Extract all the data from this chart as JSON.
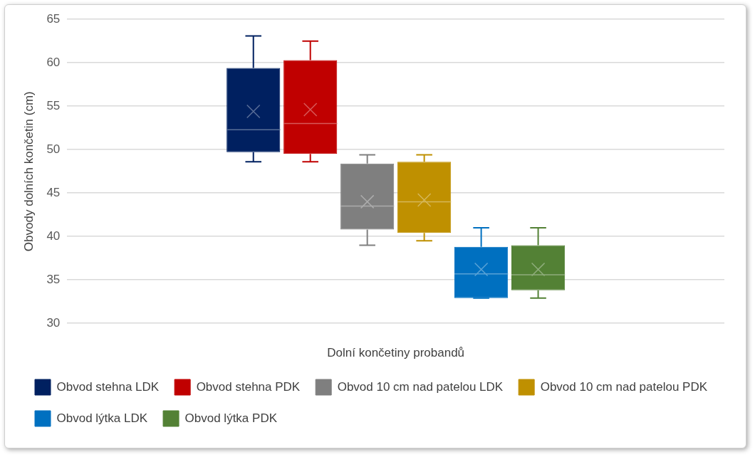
{
  "chart_data": {
    "type": "box",
    "xlabel": "Dolní končetiny probandů",
    "ylabel": "Obvody dolních končetin (cm)",
    "categories": [
      null
    ],
    "ylim": [
      30,
      65
    ],
    "yticks": [
      30,
      35,
      40,
      45,
      50,
      55,
      60,
      65
    ],
    "grid": "y",
    "legend": "bottom",
    "series": [
      {
        "name": "Obvod stehna LDK",
        "color": "#002060",
        "boxes": [
          {
            "low": 48.6,
            "q1": 49.7,
            "median": 52.3,
            "q3": 59.4,
            "high": 63.1,
            "mean": 54.4
          }
        ]
      },
      {
        "name": "Obvod stehna PDK",
        "color": "#c00000",
        "boxes": [
          {
            "low": 48.6,
            "q1": 49.5,
            "median": 53.0,
            "q3": 60.3,
            "high": 62.5,
            "mean": 54.6
          }
        ]
      },
      {
        "name": "Obvod 10 cm nad patelou LDK",
        "color": "#7f7f7f",
        "boxes": [
          {
            "low": 39.0,
            "q1": 40.8,
            "median": 43.5,
            "q3": 48.4,
            "high": 49.4,
            "mean": 44.0
          }
        ]
      },
      {
        "name": "Obvod 10 cm nad patelou PDK",
        "color": "#bf9000",
        "boxes": [
          {
            "low": 39.5,
            "q1": 40.4,
            "median": 44.0,
            "q3": 48.6,
            "high": 49.4,
            "mean": 44.2
          }
        ]
      },
      {
        "name": "Obvod lýtka LDK",
        "color": "#0070c0",
        "boxes": [
          {
            "low": 32.9,
            "q1": 32.9,
            "median": 35.7,
            "q3": 38.8,
            "high": 41.0,
            "mean": 36.2
          }
        ]
      },
      {
        "name": "Obvod lýtka PDK",
        "color": "#538135",
        "boxes": [
          {
            "low": 32.9,
            "q1": 33.8,
            "median": 35.6,
            "q3": 39.0,
            "high": 41.0,
            "mean": 36.2
          }
        ]
      }
    ]
  }
}
